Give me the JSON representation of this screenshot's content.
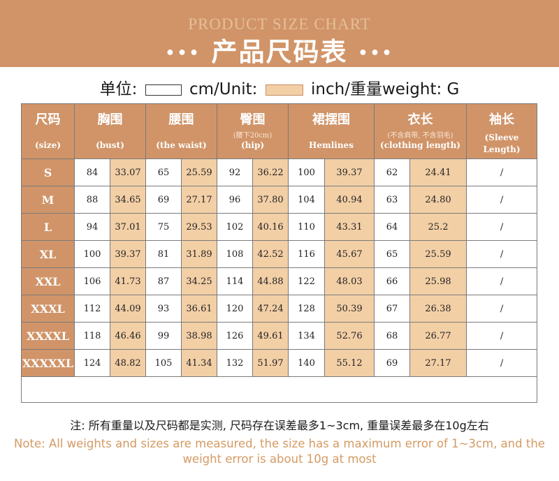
{
  "banner": {
    "subtitle": "PRODUCT SIZE CHART",
    "dots_left": "•••",
    "title": "产品尺码表",
    "dots_right": "•••"
  },
  "unit_line": {
    "label_unit": "单位:",
    "cm_text": "cm/Unit:",
    "inch_text": "inch/重量weight: G",
    "colors": {
      "cm_swatch": "#ffffff",
      "inch_swatch": "#f3cfa6"
    }
  },
  "table": {
    "headers": [
      {
        "main": "尺码",
        "note": "",
        "sub": "(size)"
      },
      {
        "main": "胸围",
        "note": "",
        "sub": "(bust)"
      },
      {
        "main": "腰围",
        "note": "",
        "sub": "(the waist)"
      },
      {
        "main": "臀围",
        "note": "(腰下20cm)",
        "sub": "(hip)"
      },
      {
        "main": "裙摆围",
        "note": "",
        "sub": "Hemlines"
      },
      {
        "main": "衣长",
        "note": "(不含肩带, 不含羽毛)",
        "sub": "(clothing length)"
      },
      {
        "main": "袖长",
        "note": "",
        "sub": "(Sleeve Length)"
      }
    ],
    "rows": [
      {
        "size": "S",
        "bust_cm": "84",
        "bust_in": "33.07",
        "waist_cm": "65",
        "waist_in": "25.59",
        "hip_cm": "92",
        "hip_in": "36.22",
        "hem_cm": "100",
        "hem_in": "39.37",
        "len_cm": "62",
        "len_in": "24.41",
        "sleeve": "/"
      },
      {
        "size": "M",
        "bust_cm": "88",
        "bust_in": "34.65",
        "waist_cm": "69",
        "waist_in": "27.17",
        "hip_cm": "96",
        "hip_in": "37.80",
        "hem_cm": "104",
        "hem_in": "40.94",
        "len_cm": "63",
        "len_in": "24.80",
        "sleeve": "/"
      },
      {
        "size": "L",
        "bust_cm": "94",
        "bust_in": "37.01",
        "waist_cm": "75",
        "waist_in": "29.53",
        "hip_cm": "102",
        "hip_in": "40.16",
        "hem_cm": "110",
        "hem_in": "43.31",
        "len_cm": "64",
        "len_in": "25.2",
        "sleeve": "/"
      },
      {
        "size": "XL",
        "bust_cm": "100",
        "bust_in": "39.37",
        "waist_cm": "81",
        "waist_in": "31.89",
        "hip_cm": "108",
        "hip_in": "42.52",
        "hem_cm": "116",
        "hem_in": "45.67",
        "len_cm": "65",
        "len_in": "25.59",
        "sleeve": "/"
      },
      {
        "size": "XXL",
        "bust_cm": "106",
        "bust_in": "41.73",
        "waist_cm": "87",
        "waist_in": "34.25",
        "hip_cm": "114",
        "hip_in": "44.88",
        "hem_cm": "122",
        "hem_in": "48.03",
        "len_cm": "66",
        "len_in": "25.98",
        "sleeve": "/"
      },
      {
        "size": "XXXL",
        "bust_cm": "112",
        "bust_in": "44.09",
        "waist_cm": "93",
        "waist_in": "36.61",
        "hip_cm": "120",
        "hip_in": "47.24",
        "hem_cm": "128",
        "hem_in": "50.39",
        "len_cm": "67",
        "len_in": "26.38",
        "sleeve": "/"
      },
      {
        "size": "XXXXL",
        "bust_cm": "118",
        "bust_in": "46.46",
        "waist_cm": "99",
        "waist_in": "38.98",
        "hip_cm": "126",
        "hip_in": "49.61",
        "hem_cm": "134",
        "hem_in": "52.76",
        "len_cm": "68",
        "len_in": "26.77",
        "sleeve": "/"
      },
      {
        "size": "XXXXXL",
        "bust_cm": "124",
        "bust_in": "48.82",
        "waist_cm": "105",
        "waist_in": "41.34",
        "hip_cm": "132",
        "hip_in": "51.97",
        "hem_cm": "140",
        "hem_in": "55.12",
        "len_cm": "69",
        "len_in": "27.17",
        "sleeve": "/"
      }
    ]
  },
  "notes": {
    "cn": "注: 所有重量以及尺码都是实测, 尺码存在误差最多1~3cm, 重量误差最多在10g左右",
    "en": "Note: All weights and sizes are measured, the size has a maximum error of 1~3cm, and the weight error is about 10g at most"
  },
  "colors": {
    "accent": "#d09468",
    "inch_fill": "#f3cfa6",
    "note_en": "#d49a63"
  }
}
